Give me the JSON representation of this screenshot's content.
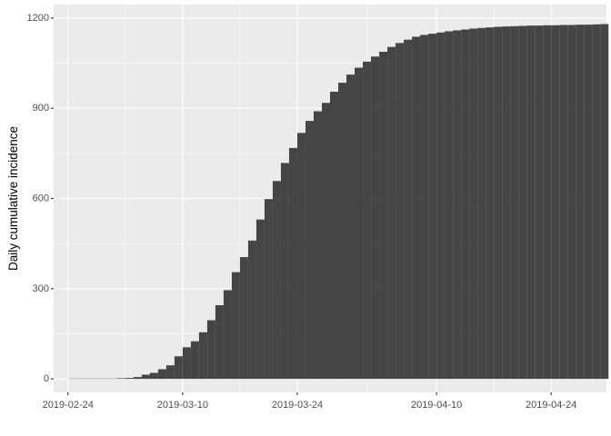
{
  "chart_data": {
    "type": "bar",
    "title": "",
    "xlabel": "",
    "ylabel": "Daily cumulative incidence",
    "x_start": "2019-02-24",
    "x_end": "2019-04-30",
    "x_ticks": [
      "2019-02-24",
      "2019-03-10",
      "2019-03-24",
      "2019-04-10",
      "2019-04-24"
    ],
    "y_ticks": [
      0,
      300,
      600,
      900,
      1200
    ],
    "ylim": [
      -45,
      1245
    ],
    "grid": true,
    "legend": "none",
    "colors": {
      "panel": "#ebebeb",
      "grid": "#ffffff",
      "bar": "#333333",
      "bar_opacity": 0.9
    },
    "values": [
      1,
      1,
      1,
      1,
      1,
      1,
      2,
      3,
      6,
      14,
      20,
      32,
      45,
      75,
      105,
      125,
      155,
      195,
      245,
      295,
      355,
      405,
      460,
      530,
      598,
      658,
      718,
      768,
      818,
      858,
      890,
      918,
      955,
      985,
      1012,
      1035,
      1055,
      1072,
      1088,
      1104,
      1117,
      1128,
      1138,
      1144,
      1148,
      1152,
      1156,
      1159,
      1162,
      1165,
      1167,
      1169,
      1171,
      1172,
      1173,
      1174,
      1175,
      1175,
      1176,
      1176,
      1177,
      1177,
      1178,
      1178,
      1179,
      1180
    ]
  }
}
